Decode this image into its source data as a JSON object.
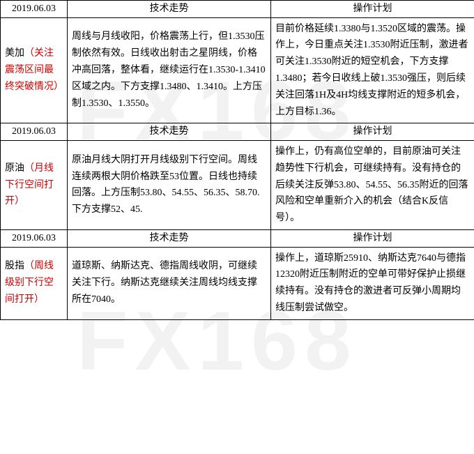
{
  "watermark": "FX168",
  "colors": {
    "name_black": "#000000",
    "name_red": "#cc0000",
    "border": "#000000",
    "background": "#ffffff"
  },
  "fontsize": 14,
  "sections": [
    {
      "date": "2019.06.03",
      "header_trend": "技术走势",
      "header_plan": "操作计划",
      "name_black": "美加",
      "name_red": "（关注震荡区间最终突破情况）",
      "trend": "周线与月线收阳，价格震荡上行，但1.3530压制依然有效。日线收出射击之星阴线，价格冲高回落，整体看，继续运行在1.3530-1.3410区域之内。下方支撑1.3480、1.3410。上方压制1.3530、1.3550。",
      "plan": "目前价格延续1.3380与1.3520区域的震荡。操作上，今日重点关注1.3530附近压制，激进者可关注1.3530附近的短空机会，下方支撑1.3480；若今日收线上破1.3530强压，则后续关注回落1H及4H均线支撑附近的短多机会，上方目标1.36。"
    },
    {
      "date": "2019.06.03",
      "header_trend": "技术走势",
      "header_plan": "操作计划",
      "name_black": "原油",
      "name_red": "（月线下行空间打开）",
      "trend": "原油月线大阴打开月线级别下行空间。周线连续两根大阴价格跌至53位置。日线也持续回落。上方压制53.80、54.55、56.35、58.70.下方支撑52、45.",
      "plan": "操作上，仍有高位空单的，目前原油可关注趋势性下行机会，可继续持有。没有持仓的后续关注反弹53.80、54.55、56.35附近的回落风险和空单重新介入的机会（结合K反信号）。"
    },
    {
      "date": "2019.06.03",
      "header_trend": "技术走势",
      "header_plan": "操作计划",
      "name_black": "股指",
      "name_red": "（周线级别下行空间打开）",
      "trend": "道琼斯、纳斯达克、德指周线收阴，可继续关注下行。纳斯达克继续关注周线均线支撑所在7040。",
      "plan": "操作上，道琼斯25910、纳斯达克7640与德指12320附近压制附近的空单可带好保护止损继续持有。没有持仓的激进者可反弹小周期均线压制尝试做空。"
    }
  ]
}
